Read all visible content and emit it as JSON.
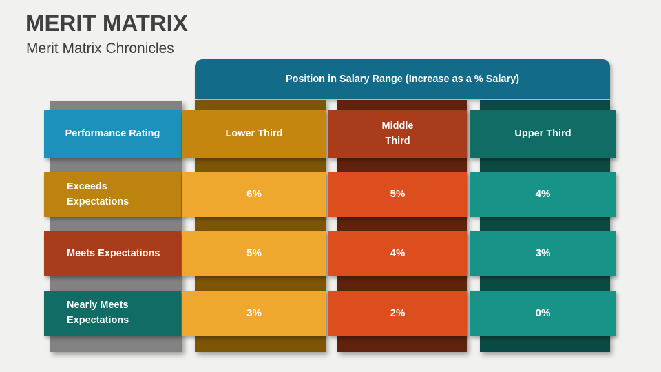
{
  "page": {
    "background": "#F1F1EF",
    "title": "MERIT MATRIX",
    "title_color": "#404040",
    "subtitle": "Merit Matrix Chronicles",
    "subtitle_color": "#3E3E3E"
  },
  "table": {
    "banner": {
      "label": "Position in Salary Range (Increase as a % Salary)",
      "color": "#136B8A"
    },
    "columns": [
      {
        "key": "performance-rating",
        "header": "Performance Rating",
        "header_color": "#1B91BB",
        "shadow_color": "#828282"
      },
      {
        "key": "lower-third",
        "header": "Lower Third",
        "header_color": "#C5860F",
        "shadow_color": "#7C5606",
        "cell_color": "#EFA72D"
      },
      {
        "key": "middle-third",
        "header": "Middle\nThird",
        "header_color": "#A83C1B",
        "shadow_color": "#5F220D",
        "cell_color": "#DC4E1D"
      },
      {
        "key": "upper-third",
        "header": "Upper Third",
        "header_color": "#106C64",
        "shadow_color": "#0B4A43",
        "cell_color": "#179387"
      }
    ],
    "rows": [
      {
        "label": "Exceeds\nExpectations",
        "label_color": "#BC830F",
        "values": [
          "6%",
          "5%",
          "4%"
        ]
      },
      {
        "label": "Meets Expectations",
        "label_color": "#A83C1B",
        "values": [
          "5%",
          "4%",
          "3%"
        ]
      },
      {
        "label": "Nearly Meets\nExpectations",
        "label_color": "#106C64",
        "values": [
          "3%",
          "2%",
          "0%"
        ]
      }
    ]
  }
}
